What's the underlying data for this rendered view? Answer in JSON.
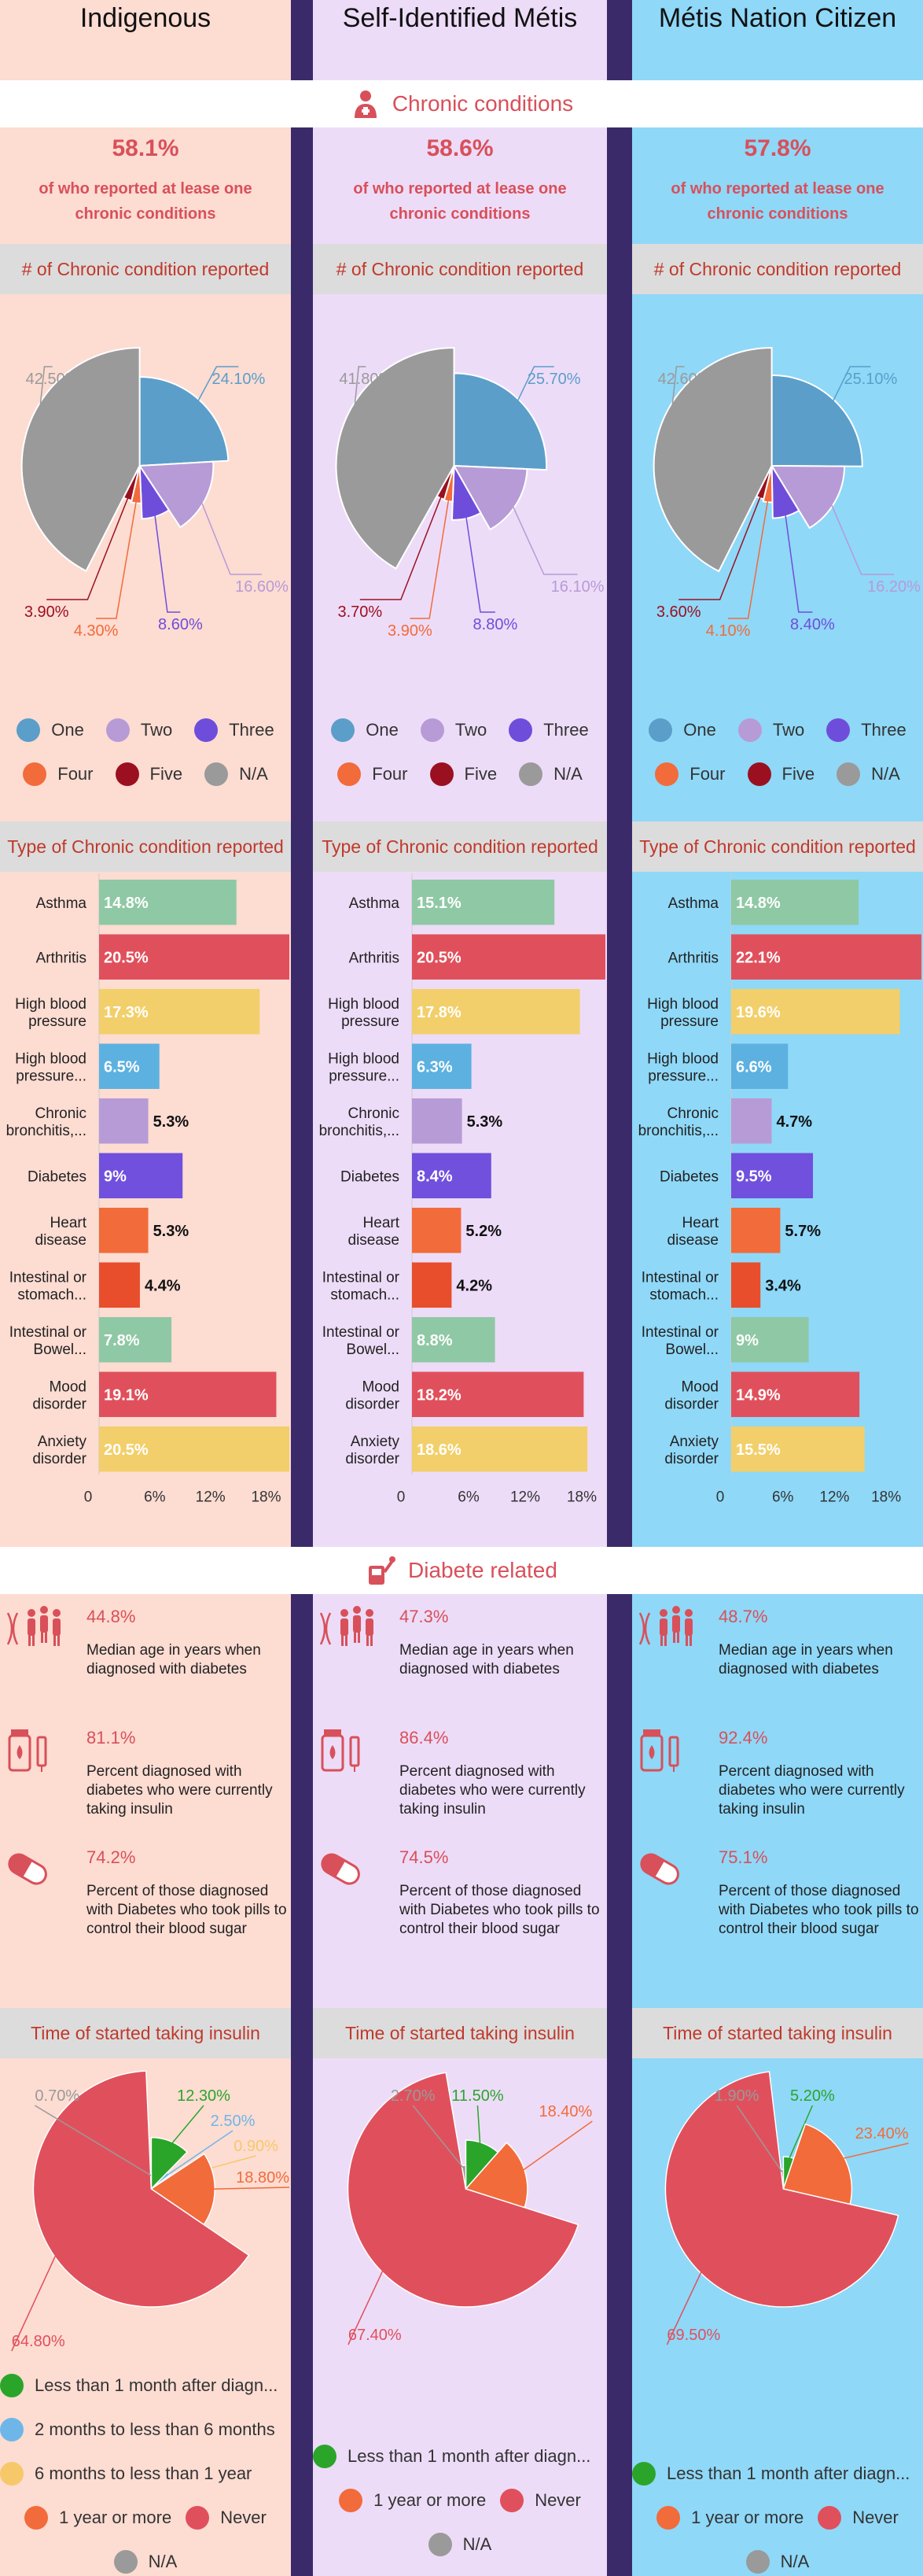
{
  "colors": {
    "One": "#5b9ec9",
    "Two": "#b79bd6",
    "Three": "#6f4ddb",
    "Four": "#f26b3a",
    "Five": "#9b1020",
    "NA": "#9a9a9a",
    "accent": "#d8505a",
    "bar_colors": [
      "#8fc8a4",
      "#e0505c",
      "#f2cf6a",
      "#5cb1e0",
      "#b79bd6",
      "#7050dd",
      "#f26b3a",
      "#e84d2c",
      "#8fc8a4",
      "#e0505c",
      "#f2cf6a"
    ],
    "ins_lt1": "#2aa52a",
    "ins_2to6": "#6fb6e8",
    "ins_6to12": "#f7c86a",
    "ins_1yr": "#f26b3a",
    "ins_never": "#e0505c",
    "ins_na": "#9a9a9a"
  },
  "section_titles": {
    "chronic": "Chronic conditions",
    "diabetes": "Diabete related"
  },
  "columns": [
    {
      "title": "Indigenous",
      "chronic_pct": "58.1%",
      "chronic_sub_1": "of who reported at lease one",
      "chronic_sub_2": "chronic conditions",
      "num_header": "# of Chronic condition reported",
      "type_header": "Type of Chronic condition reported",
      "insulin_header": "Time of started taking insulin",
      "diabetes_stats": [
        {
          "value": "44.8%",
          "desc": "Median age in years when diagnosed with  diabetes",
          "icon": "dna-people-icon"
        },
        {
          "value": "81.1%",
          "desc": "Percent diagnosed with diabetes who were currently taking insulin",
          "icon": "insulin-vial-icon"
        },
        {
          "value": "74.2%",
          "desc": "Percent of those diagnosed with Diabetes who took pills to control their blood sugar",
          "icon": "pill-icon"
        }
      ],
      "insulin_legend": [
        [
          "Less than 1 month after diagn..."
        ],
        [
          "2 months to less than 6 months"
        ],
        [
          "6 months to less than 1 year"
        ],
        [
          "1 year or more",
          "Never"
        ],
        [
          "N/A"
        ]
      ]
    },
    {
      "title": "Self-Identified Métis",
      "chronic_pct": "58.6%",
      "chronic_sub_1": "of who reported at lease one",
      "chronic_sub_2": "chronic conditions",
      "num_header": "# of Chronic condition reported",
      "type_header": "Type of Chronic condition reported",
      "insulin_header": "Time of started taking insulin",
      "diabetes_stats": [
        {
          "value": "47.3%",
          "desc": "Median age in years when diagnosed with  diabetes",
          "icon": "dna-people-icon"
        },
        {
          "value": "86.4%",
          "desc": "Percent diagnosed with diabetes who were currently taking insulin",
          "icon": "insulin-vial-icon"
        },
        {
          "value": "74.5%",
          "desc": "Percent of those diagnosed with Diabetes who took pills to control their blood sugar",
          "icon": "pill-icon"
        }
      ],
      "insulin_legend": [
        [
          "Less than 1 month after diagn..."
        ],
        [
          "1 year or more",
          "Never"
        ],
        [
          "N/A"
        ]
      ]
    },
    {
      "title": "Métis Nation Citizen",
      "chronic_pct": "57.8%",
      "chronic_sub_1": "of who reported at lease one",
      "chronic_sub_2": "chronic conditions",
      "num_header": "# of Chronic condition reported",
      "type_header": "Type of Chronic condition reported",
      "insulin_header": "Time of started taking insulin",
      "diabetes_stats": [
        {
          "value": "48.7%",
          "desc": "Median age in years when diagnosed with  diabetes",
          "icon": "dna-people-icon"
        },
        {
          "value": "92.4%",
          "desc": "Percent diagnosed with diabetes who were currently taking insulin",
          "icon": "insulin-vial-icon"
        },
        {
          "value": "75.1%",
          "desc": "Percent of those diagnosed with Diabetes who took pills to control their blood sugar",
          "icon": "pill-icon"
        }
      ],
      "insulin_legend": [
        [
          "Less than 1 month after diagn..."
        ],
        [
          "1 year or more",
          "Never"
        ],
        [
          "N/A"
        ]
      ]
    }
  ],
  "chart_data": [
    {
      "type": "pie",
      "group": "Indigenous",
      "title": "# of Chronic condition reported",
      "labels": [
        "One",
        "Two",
        "Three",
        "Four",
        "Five",
        "N/A"
      ],
      "values": [
        24.1,
        16.6,
        8.6,
        4.3,
        3.9,
        42.5
      ],
      "value_labels": [
        "24.10%",
        "16.60%",
        "8.60%",
        "4.30%",
        "3.90%",
        "42.50%"
      ]
    },
    {
      "type": "pie",
      "group": "Self-Identified Métis",
      "title": "# of Chronic condition reported",
      "labels": [
        "One",
        "Two",
        "Three",
        "Four",
        "Five",
        "N/A"
      ],
      "values": [
        25.7,
        16.1,
        8.8,
        3.9,
        3.7,
        41.8
      ],
      "value_labels": [
        "25.70%",
        "16.10%",
        "8.80%",
        "3.90%",
        "3.70%",
        "41.80%"
      ]
    },
    {
      "type": "pie",
      "group": "Métis Nation Citizen",
      "title": "# of Chronic condition reported",
      "labels": [
        "One",
        "Two",
        "Three",
        "Four",
        "Five",
        "N/A"
      ],
      "values": [
        25.1,
        16.2,
        8.4,
        4.1,
        3.6,
        42.6
      ],
      "value_labels": [
        "25.10%",
        "16.20%",
        "8.40%",
        "4.10%",
        "3.60%",
        "42.60%"
      ]
    },
    {
      "type": "bar",
      "group": "Indigenous",
      "title": "Type of Chronic condition reported",
      "categories": [
        "Asthma",
        "Arthritis",
        "High blood pressure",
        "High blood pressure...",
        "Chronic bronchitis,...",
        "Diabetes",
        "Heart disease",
        "Intestinal or stomach...",
        "Intestinal or Bowel...",
        "Mood disorder",
        "Anxiety disorder"
      ],
      "values": [
        14.8,
        20.5,
        17.3,
        6.5,
        5.3,
        9,
        5.3,
        4.4,
        7.8,
        19.1,
        20.5
      ],
      "value_labels": [
        "14.8%",
        "20.5%",
        "17.3%",
        "6.5%",
        "5.3%",
        "9%",
        "5.3%",
        "4.4%",
        "7.8%",
        "19.1%",
        "20.5%"
      ],
      "xlim": [
        0,
        20.5
      ],
      "xticks": [
        "0",
        "6%",
        "12%",
        "18%"
      ],
      "xtick_values": [
        0,
        6,
        12,
        18
      ]
    },
    {
      "type": "bar",
      "group": "Self-Identified Métis",
      "title": "Type of Chronic condition reported",
      "categories": [
        "Asthma",
        "Arthritis",
        "High blood pressure",
        "High blood pressure...",
        "Chronic bronchitis,...",
        "Diabetes",
        "Heart disease",
        "Intestinal or stomach...",
        "Intestinal or Bowel...",
        "Mood disorder",
        "Anxiety disorder"
      ],
      "values": [
        15.1,
        20.5,
        17.8,
        6.3,
        5.3,
        8.4,
        5.2,
        4.2,
        8.8,
        18.2,
        18.6
      ],
      "value_labels": [
        "15.1%",
        "20.5%",
        "17.8%",
        "6.3%",
        "5.3%",
        "8.4%",
        "5.2%",
        "4.2%",
        "8.8%",
        "18.2%",
        "18.6%"
      ],
      "xlim": [
        0,
        20.5
      ],
      "xticks": [
        "0",
        "6%",
        "12%",
        "18%"
      ],
      "xtick_values": [
        0,
        6,
        12,
        18
      ]
    },
    {
      "type": "bar",
      "group": "Métis Nation Citizen",
      "title": "Type of Chronic condition reported",
      "categories": [
        "Asthma",
        "Arthritis",
        "High blood pressure",
        "High blood pressure...",
        "Chronic bronchitis,...",
        "Diabetes",
        "Heart disease",
        "Intestinal or stomach...",
        "Intestinal or Bowel...",
        "Mood disorder",
        "Anxiety disorder"
      ],
      "values": [
        14.8,
        22.1,
        19.6,
        6.6,
        4.7,
        9.5,
        5.7,
        3.4,
        9,
        14.9,
        15.5
      ],
      "value_labels": [
        "14.8%",
        "22.1%",
        "19.6%",
        "6.6%",
        "4.7%",
        "9.5%",
        "5.7%",
        "3.4%",
        "9%",
        "14.9%",
        "15.5%"
      ],
      "xlim": [
        0,
        22.1
      ],
      "xticks": [
        "0",
        "6%",
        "12%",
        "18%",
        "24%"
      ],
      "xtick_values": [
        0,
        6,
        12,
        18,
        24
      ]
    },
    {
      "type": "pie",
      "group": "Indigenous",
      "title": "Time of started taking insulin",
      "labels": [
        "Less than 1 month after diagn...",
        "2 months to less than 6 months",
        "6 months to less than 1 year",
        "1 year or more",
        "Never",
        "N/A"
      ],
      "values": [
        12.3,
        2.5,
        0.9,
        18.8,
        64.8,
        0.7
      ],
      "value_labels": [
        "12.30%",
        "2.50%",
        "0.90%",
        "18.80%",
        "64.80%",
        "0.70%"
      ]
    },
    {
      "type": "pie",
      "group": "Self-Identified Métis",
      "title": "Time of started taking insulin",
      "labels": [
        "Less than 1 month after diagn...",
        "1 year or more",
        "Never",
        "N/A"
      ],
      "values": [
        11.5,
        18.4,
        67.4,
        2.7
      ],
      "value_labels": [
        "11.50%",
        "18.40%",
        "67.40%",
        "2.70%"
      ]
    },
    {
      "type": "pie",
      "group": "Métis Nation Citizen",
      "title": "Time of started taking insulin",
      "labels": [
        "Less than 1 month after diagn...",
        "1 year or more",
        "Never",
        "N/A"
      ],
      "values": [
        5.2,
        23.4,
        69.5,
        1.9
      ],
      "value_labels": [
        "5.20%",
        "23.40%",
        "69.50%",
        "1.90%"
      ]
    }
  ]
}
